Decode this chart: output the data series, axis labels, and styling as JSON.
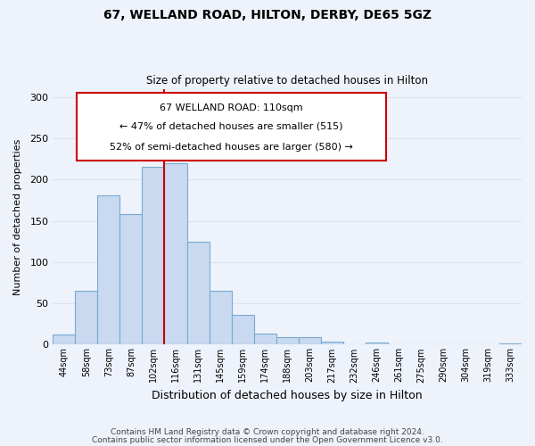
{
  "title": "67, WELLAND ROAD, HILTON, DERBY, DE65 5GZ",
  "subtitle": "Size of property relative to detached houses in Hilton",
  "xlabel": "Distribution of detached houses by size in Hilton",
  "ylabel": "Number of detached properties",
  "bar_color": "#c8d9f0",
  "bar_edge_color": "#7aaad0",
  "categories": [
    "44sqm",
    "58sqm",
    "73sqm",
    "87sqm",
    "102sqm",
    "116sqm",
    "131sqm",
    "145sqm",
    "159sqm",
    "174sqm",
    "188sqm",
    "203sqm",
    "217sqm",
    "232sqm",
    "246sqm",
    "261sqm",
    "275sqm",
    "290sqm",
    "304sqm",
    "319sqm",
    "333sqm"
  ],
  "values": [
    12,
    65,
    181,
    158,
    215,
    220,
    125,
    65,
    36,
    13,
    9,
    9,
    4,
    0,
    3,
    0,
    0,
    0,
    0,
    0,
    2
  ],
  "annotation_text_line1": "67 WELLAND ROAD: 110sqm",
  "annotation_text_line2": "← 47% of detached houses are smaller (515)",
  "annotation_text_line3": "52% of semi-detached houses are larger (580) →",
  "footer_line1": "Contains HM Land Registry data © Crown copyright and database right 2024.",
  "footer_line2": "Contains public sector information licensed under the Open Government Licence v3.0.",
  "ylim": [
    0,
    310
  ],
  "grid_color": "#d8e4f0",
  "bg_color": "#eef2fa",
  "red_line_color": "#cc0000",
  "box_edge_color": "#cc0000",
  "title_fontsize": 10,
  "subtitle_fontsize": 8.5,
  "xlabel_fontsize": 9,
  "ylabel_fontsize": 8,
  "tick_fontsize": 7,
  "annotation_fontsize": 8,
  "footer_fontsize": 6.5
}
